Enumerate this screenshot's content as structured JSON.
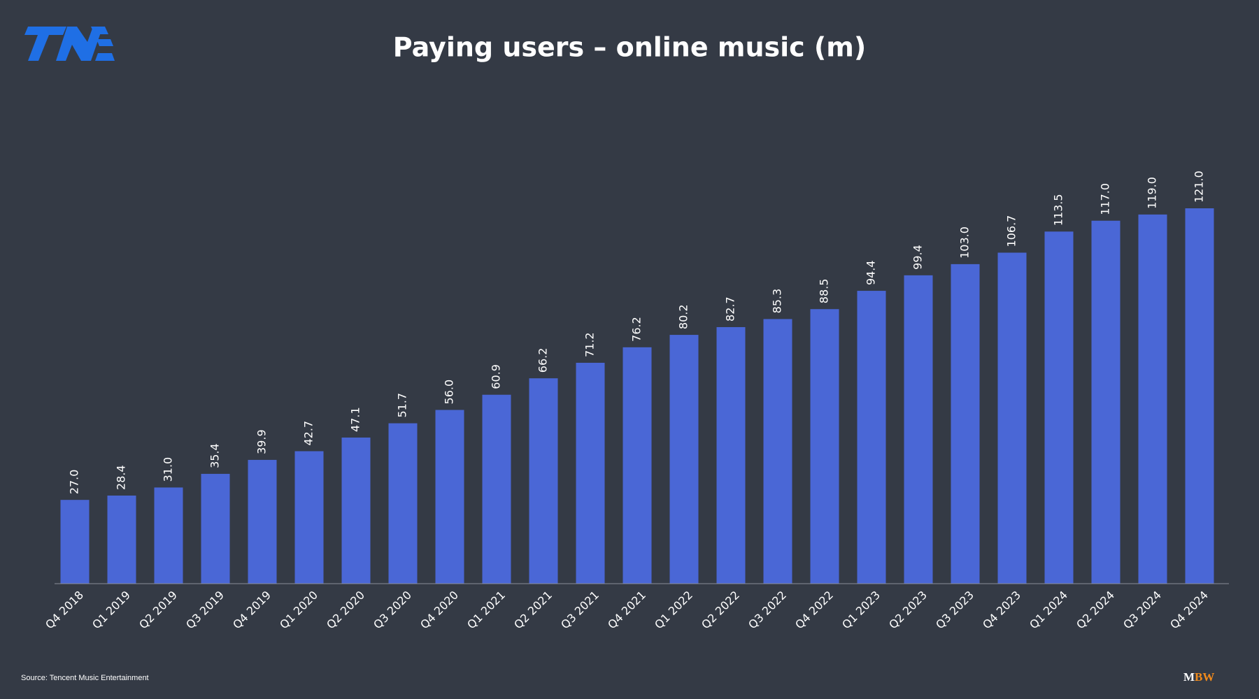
{
  "chart_data": {
    "type": "bar",
    "title": "Paying users – online music (m)",
    "categories": [
      "Q4 2018",
      "Q1 2019",
      "Q2 2019",
      "Q3 2019",
      "Q4 2019",
      "Q1 2020",
      "Q2 2020",
      "Q3 2020",
      "Q4 2020",
      "Q1 2021",
      "Q2 2021",
      "Q3 2021",
      "Q4 2021",
      "Q1 2022",
      "Q2 2022",
      "Q3 2022",
      "Q4 2022",
      "Q1 2023",
      "Q2 2023",
      "Q3 2023",
      "Q4 2023",
      "Q1 2024",
      "Q2 2024",
      "Q3 2024",
      "Q4 2024"
    ],
    "values": [
      27.0,
      28.4,
      31.0,
      35.4,
      39.9,
      42.7,
      47.1,
      51.7,
      56.0,
      60.9,
      66.2,
      71.2,
      76.2,
      80.2,
      82.7,
      85.3,
      88.5,
      94.4,
      99.4,
      103.0,
      106.7,
      113.5,
      117.0,
      119.0,
      121.0
    ],
    "value_labels": [
      "27.0",
      "28.4",
      "31.0",
      "35.4",
      "39.9",
      "42.7",
      "47.1",
      "51.7",
      "56.0",
      "60.9",
      "66.2",
      "71.2",
      "76.2",
      "80.2",
      "82.7",
      "85.3",
      "88.5",
      "94.4",
      "99.4",
      "103.0",
      "106.7",
      "113.5",
      "117.0",
      "119.0",
      "121.0"
    ],
    "color": "#4a67d6"
  },
  "source": "Source: Tencent Music Entertainment",
  "brand": [
    "M",
    "BW"
  ]
}
